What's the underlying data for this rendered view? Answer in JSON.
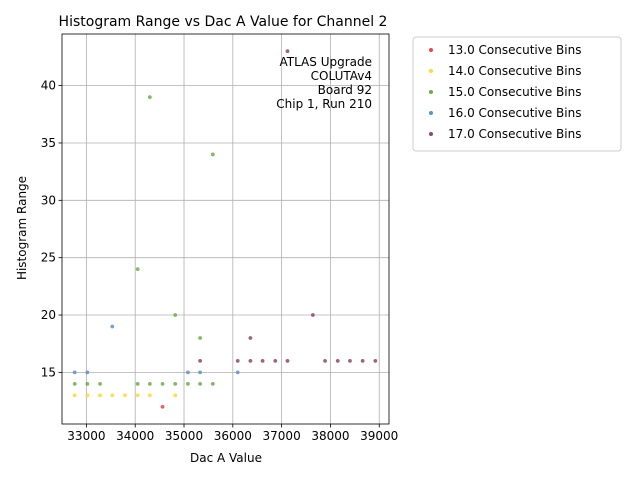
{
  "chart_data": {
    "type": "scatter",
    "title": "Histogram Range vs Dac A Value for Channel 2",
    "xlabel": "Dac A Value",
    "ylabel": "Histogram Range",
    "xlim": [
      32500,
      39200
    ],
    "ylim": [
      10.5,
      44.5
    ],
    "xticks": [
      33000,
      34000,
      35000,
      36000,
      37000,
      38000,
      39000
    ],
    "yticks": [
      15,
      20,
      25,
      30,
      35,
      40
    ],
    "grid": true,
    "legend_position": "outside-right",
    "annotation": [
      "ATLAS Upgrade",
      "COLUTAv4",
      "Board 92",
      "Chip 1, Run 210"
    ],
    "series": [
      {
        "name": "13.0 Consecutive Bins",
        "color": "#e8474f",
        "points": [
          [
            34560,
            12
          ]
        ]
      },
      {
        "name": "14.0 Consecutive Bins",
        "color": "#ffd83a",
        "points": [
          [
            32760,
            13
          ],
          [
            33020,
            13
          ],
          [
            33280,
            13
          ],
          [
            33530,
            13
          ],
          [
            33790,
            13
          ],
          [
            34050,
            13
          ],
          [
            34300,
            13
          ],
          [
            34820,
            13
          ]
        ]
      },
      {
        "name": "15.0 Consecutive Bins",
        "color": "#6fab4a",
        "points": [
          [
            32760,
            14
          ],
          [
            33020,
            14
          ],
          [
            33280,
            14
          ],
          [
            34050,
            14
          ],
          [
            34300,
            14
          ],
          [
            34560,
            14
          ],
          [
            34820,
            14
          ],
          [
            35080,
            14
          ],
          [
            35330,
            14
          ],
          [
            35590,
            14
          ],
          [
            34050,
            24
          ],
          [
            34300,
            39
          ],
          [
            34820,
            20
          ],
          [
            35330,
            18
          ],
          [
            35590,
            34
          ]
        ]
      },
      {
        "name": "16.0 Consecutive Bins",
        "color": "#5a93c6",
        "points": [
          [
            32760,
            15
          ],
          [
            33020,
            15
          ],
          [
            33530,
            19
          ],
          [
            35080,
            15
          ],
          [
            35330,
            15
          ],
          [
            36100,
            15
          ]
        ]
      },
      {
        "name": "17.0 Consecutive Bins",
        "color": "#8a4a6a",
        "points": [
          [
            35330,
            16
          ],
          [
            36100,
            16
          ],
          [
            36360,
            16
          ],
          [
            36360,
            18
          ],
          [
            36610,
            16
          ],
          [
            36870,
            16
          ],
          [
            37120,
            16
          ],
          [
            37120,
            43
          ],
          [
            37640,
            20
          ],
          [
            37890,
            16
          ],
          [
            38150,
            16
          ],
          [
            38400,
            16
          ],
          [
            38660,
            16
          ],
          [
            38920,
            16
          ]
        ]
      }
    ]
  }
}
